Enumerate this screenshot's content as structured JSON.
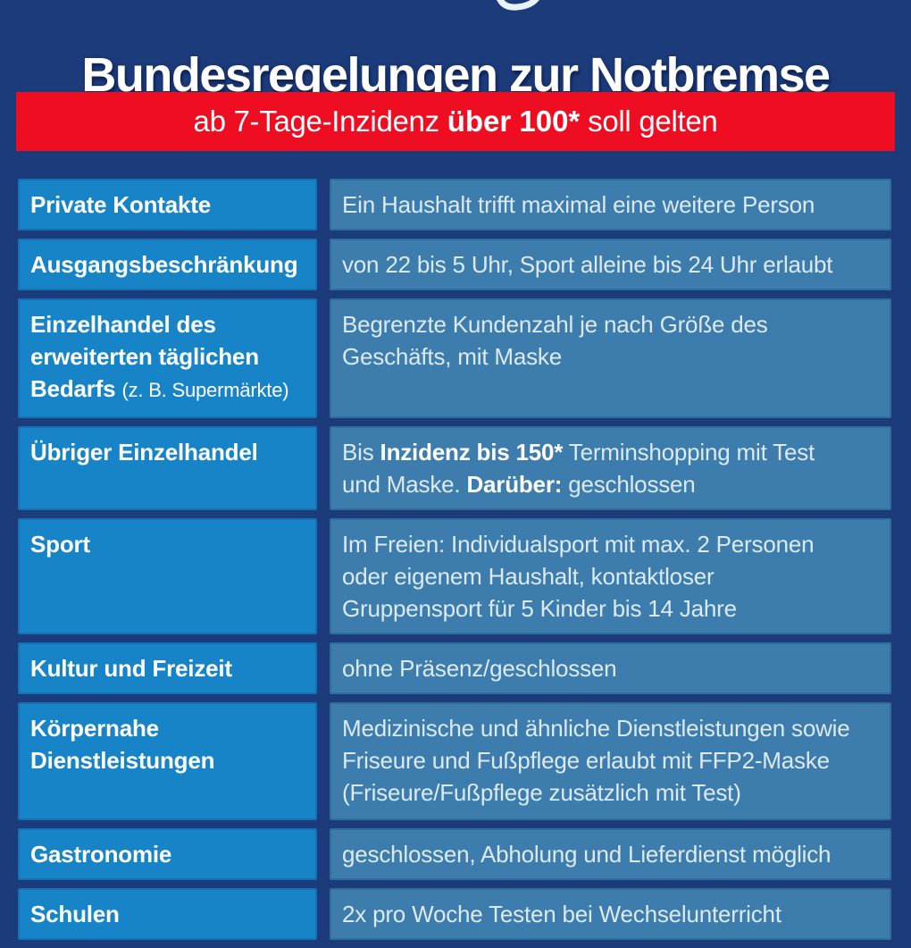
{
  "page": {
    "title": "Bundesregelungen zur Notbremse",
    "banner": {
      "segments": [
        {
          "t": "ab 7-Tage-Inzidenz ",
          "b": false
        },
        {
          "t": "über 100*",
          "b": true
        },
        {
          "t": " soll gelten",
          "b": false
        }
      ]
    },
    "icons": {
      "cropped_glyph": "partial-descender-curve-of-cropped-headline"
    },
    "colors": {
      "background_navy": "#1c3b7a",
      "banner_red": "#ee0d21",
      "category_cell_blue": "#1884c8",
      "details_cell_blue": "#3c7dae",
      "category_text": "#ffffff",
      "details_text": "#ddeaf4"
    },
    "table": {
      "rows": [
        {
          "id": "private-kontakte",
          "label": [
            {
              "t": "Private Kontakte",
              "b": true
            }
          ],
          "content": [
            {
              "t": "Ein Haushalt trifft maximal eine weitere Person",
              "b": false
            }
          ]
        },
        {
          "id": "ausgangsbeschraenkung",
          "label": [
            {
              "t": "Ausgangsbeschränkung",
              "b": true
            }
          ],
          "content": [
            {
              "t": "von 22 bis 5 Uhr, Sport alleine bis 24 Uhr erlaubt",
              "b": false
            }
          ]
        },
        {
          "id": "einzelhandel-taeglicher-bedarf",
          "label": [
            {
              "t": "Einzelhandel des\nerweiterten täglichen\nBedarfs ",
              "b": true
            },
            {
              "t": "(z. B. Supermärkte)",
              "b": false,
              "note": true
            }
          ],
          "content": [
            {
              "t": "Begrenzte Kundenzahl je nach Größe des\nGeschäfts, mit Maske",
              "b": false
            }
          ]
        },
        {
          "id": "uebriger-einzelhandel",
          "label": [
            {
              "t": "Übriger Einzelhandel",
              "b": true
            }
          ],
          "content": [
            {
              "t": "Bis ",
              "b": false
            },
            {
              "t": "Inzidenz bis 150*",
              "b": true
            },
            {
              "t": " Terminshopping mit Test\nund Maske. ",
              "b": false
            },
            {
              "t": "Darüber:",
              "b": true
            },
            {
              "t": " geschlossen",
              "b": false
            }
          ]
        },
        {
          "id": "sport",
          "label": [
            {
              "t": "Sport",
              "b": true
            }
          ],
          "content": [
            {
              "t": "Im Freien: Individualsport mit max. 2 Personen\noder eigenem Haushalt, kontaktloser\nGruppensport für 5 Kinder bis 14 Jahre",
              "b": false
            }
          ]
        },
        {
          "id": "kultur-und-freizeit",
          "label": [
            {
              "t": "Kultur und Freizeit",
              "b": true
            }
          ],
          "content": [
            {
              "t": "ohne Präsenz/geschlossen",
              "b": false
            }
          ]
        },
        {
          "id": "koerpernahe-dienstleistungen",
          "label": [
            {
              "t": "Körpernahe\nDienstleistungen",
              "b": true
            }
          ],
          "content": [
            {
              "t": "Medizinische und ähnliche Dienstleistungen sowie\nFriseure und Fußpflege erlaubt mit FFP2-Maske\n(Friseure/Fußpflege zusätzlich mit Test)",
              "b": false
            }
          ]
        },
        {
          "id": "gastronomie",
          "label": [
            {
              "t": "Gastronomie",
              "b": true
            }
          ],
          "content": [
            {
              "t": "geschlossen, Abholung und Lieferdienst möglich",
              "b": false
            }
          ]
        },
        {
          "id": "schulen",
          "label": [
            {
              "t": "Schulen",
              "b": true
            }
          ],
          "content": [
            {
              "t": "2x pro Woche Testen bei Wechselunterricht",
              "b": false
            }
          ]
        }
      ]
    }
  }
}
